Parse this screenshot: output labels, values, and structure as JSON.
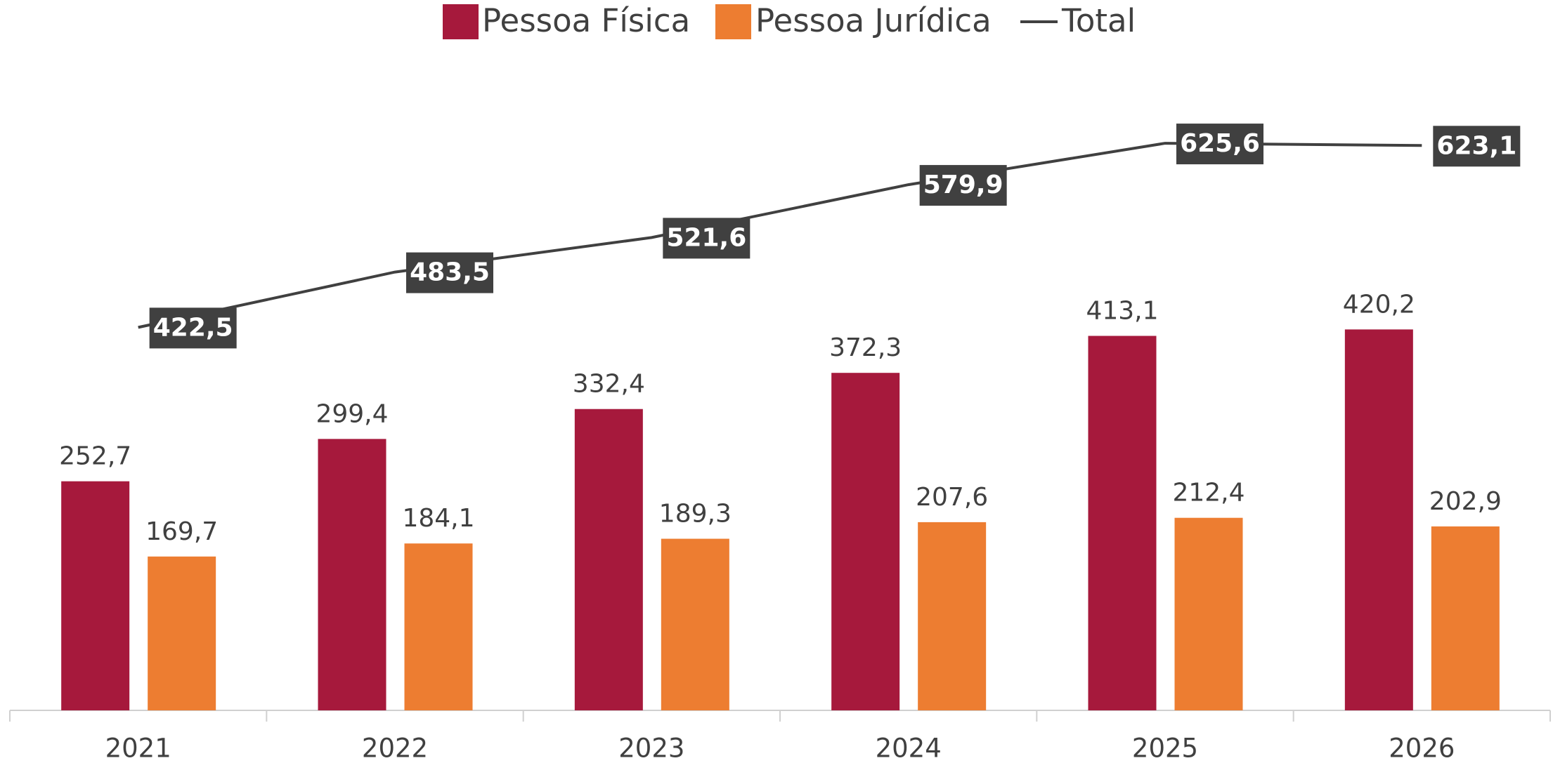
{
  "chart_data": {
    "type": "bar-line",
    "categories": [
      "2021",
      "2022",
      "2023",
      "2024",
      "2025",
      "2026"
    ],
    "series": [
      {
        "name": "Pessoa Física",
        "type": "bar",
        "color": "#a6193c",
        "values": [
          252.7,
          299.4,
          332.4,
          372.3,
          413.1,
          420.2
        ],
        "value_labels": [
          "252,7",
          "299,4",
          "332,4",
          "372,3",
          "413,1",
          "420,2"
        ]
      },
      {
        "name": "Pessoa Jurídica",
        "type": "bar",
        "color": "#ed7d31",
        "values": [
          169.7,
          184.1,
          189.3,
          207.6,
          212.4,
          202.9
        ],
        "value_labels": [
          "169,7",
          "184,1",
          "189,3",
          "207,6",
          "212,4",
          "202,9"
        ]
      },
      {
        "name": "Total",
        "type": "line",
        "color": "#404040",
        "values": [
          422.5,
          483.5,
          521.6,
          579.9,
          625.6,
          623.1
        ],
        "value_labels": [
          "422,5",
          "483,5",
          "521,6",
          "579,9",
          "625,6",
          "623,1"
        ]
      }
    ],
    "ylim": [
      0,
      700
    ],
    "legend": "top"
  }
}
